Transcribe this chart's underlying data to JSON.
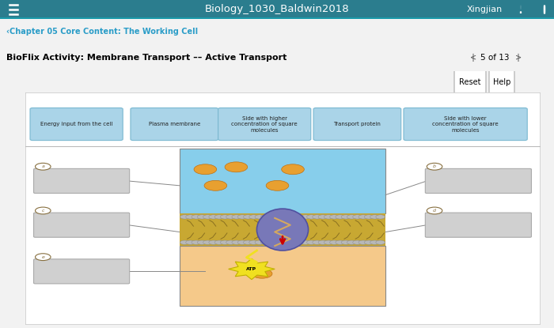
{
  "title_bar_text": "Biology_1030_Baldwin2018",
  "title_bar_bg": "#2b7d8e",
  "title_bar_fg": "#ffffff",
  "chapter_text": "‹Chapter 05 Core Content: The Working Cell",
  "chapter_color": "#2b9dc8",
  "activity_title": "BioFlix Activity: Membrane Transport –– Active Transport",
  "page_info": "5 of 13",
  "label_boxes": [
    "Energy input from the cell",
    "Plasma membrane",
    "Side with higher\nconcentration of square\nmolecules",
    "Transport protein",
    "Side with lower\nconcentration of square\nmolecules"
  ],
  "label_box_color": "#aad4e8",
  "label_box_edge": "#7ab8d0",
  "bg_outer": "#f2f2f2",
  "bg_panel_top": "#ffffff",
  "bg_cell_upper": "#87CEEB",
  "bg_cell_lower": "#f5c98a",
  "membrane_color_main": "#c8a832",
  "membrane_color_dark": "#8a7020",
  "membrane_dots_color": "#888888",
  "protein_color": "#7878b8",
  "protein_edge": "#5050a0",
  "molecule_round_color": "#e8a030",
  "molecule_square_color": "#d07820",
  "atp_bg": "#f0e020",
  "atp_edge": "#c0b000",
  "arrow_color": "#cc0000",
  "line_color": "#888888",
  "answer_box_color": "#cccccc",
  "answer_box_edge": "#aaaaaa",
  "answer_label_color": "#887040"
}
